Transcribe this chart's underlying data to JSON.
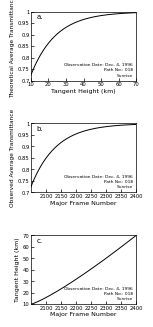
{
  "panel_a": {
    "label": "a.",
    "xlabel": "Tangent Height (km)",
    "ylabel": "Theoretical Average Transmittance",
    "xlim": [
      10,
      70
    ],
    "ylim": [
      0.7,
      1.0
    ],
    "xticks": [
      10,
      20,
      30,
      40,
      50,
      60,
      70
    ],
    "yticks": [
      0.7,
      0.75,
      0.8,
      0.85,
      0.9,
      0.95,
      1.0
    ],
    "yticklabels": [
      "0.7",
      "0.75",
      "0.8",
      "0.85",
      "0.9",
      "0.95",
      "1"
    ],
    "annotation": "Observation Date: Dec. 4, 1996\nPath No.: 018\nSunrise"
  },
  "panel_b": {
    "label": "b.",
    "xlabel": "Major Frame Number",
    "ylabel": "Observed Average Transmittance",
    "xlim": [
      2050,
      2400
    ],
    "ylim": [
      0.7,
      1.0
    ],
    "xticks": [
      2100,
      2150,
      2200,
      2250,
      2300,
      2350,
      2400
    ],
    "yticks": [
      0.7,
      0.75,
      0.8,
      0.85,
      0.9,
      0.95,
      1.0
    ],
    "yticklabels": [
      "0.7",
      "0.75",
      "0.8",
      "0.85",
      "0.9",
      "0.95",
      "1"
    ],
    "annotation": "Observation Date: Dec. 4, 1996\nPath No.: 018\nSunrise"
  },
  "panel_c": {
    "label": "c.",
    "xlabel": "Major Frame Number",
    "ylabel": "Tangent Height (km)",
    "xlim": [
      2050,
      2400
    ],
    "ylim": [
      10,
      70
    ],
    "xticks": [
      2100,
      2150,
      2200,
      2250,
      2300,
      2350,
      2400
    ],
    "yticks": [
      10,
      20,
      30,
      40,
      50,
      60,
      70
    ],
    "yticklabels": [
      "10",
      "20",
      "30",
      "40",
      "50",
      "60",
      "70"
    ],
    "annotation": "Observation Date: Dec. 4, 1996\nPath No.: 018\nSunrise"
  },
  "line_color": "#000000",
  "bg_color": "#ffffff",
  "ylabel_fontsize": 4.2,
  "xlabel_fontsize": 4.5,
  "annotation_fontsize": 3.2,
  "label_fontsize": 5.0,
  "tick_fontsize": 3.8
}
